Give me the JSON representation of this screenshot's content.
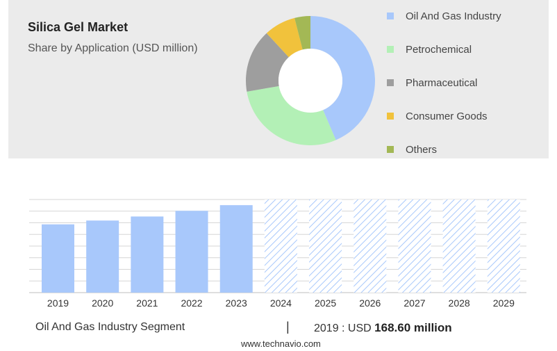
{
  "header": {
    "title": "Silica Gel Market",
    "subtitle": "Share by Application (USD million)"
  },
  "chart_data": [
    {
      "type": "pie",
      "variant": "donut",
      "slices": [
        {
          "label": "Oil And Gas Industry",
          "value": 44,
          "color": "#a8c8fb"
        },
        {
          "label": "Petrochemical",
          "value": 29,
          "color": "#b3f0b6"
        },
        {
          "label": "Pharmaceutical",
          "value": 16,
          "color": "#9e9e9e"
        },
        {
          "label": "Consumer Goods",
          "value": 8,
          "color": "#f1c23c"
        },
        {
          "label": "Others",
          "value": 4,
          "color": "#a3b855"
        }
      ],
      "legend_position": "right"
    },
    {
      "type": "bar",
      "categories": [
        "2019",
        "2020",
        "2021",
        "2022",
        "2023",
        "2024",
        "2025",
        "2026",
        "2027",
        "2028",
        "2029"
      ],
      "values": [
        168.6,
        178,
        188,
        202,
        216,
        null,
        null,
        null,
        null,
        null,
        null
      ],
      "forecast_categories": [
        "2024",
        "2025",
        "2026",
        "2027",
        "2028",
        "2029"
      ],
      "forecast_style": "hatched",
      "color": "#a8c8fb",
      "ylim": [
        0,
        230
      ],
      "grid": true,
      "y_tick_labels_visible": false
    }
  ],
  "footer": {
    "segment_label": "Oil And Gas Industry Segment",
    "separator": "|",
    "year_prefix": "2019 : USD ",
    "value_text": "168.60 million"
  },
  "watermark": "www.technavio.com"
}
